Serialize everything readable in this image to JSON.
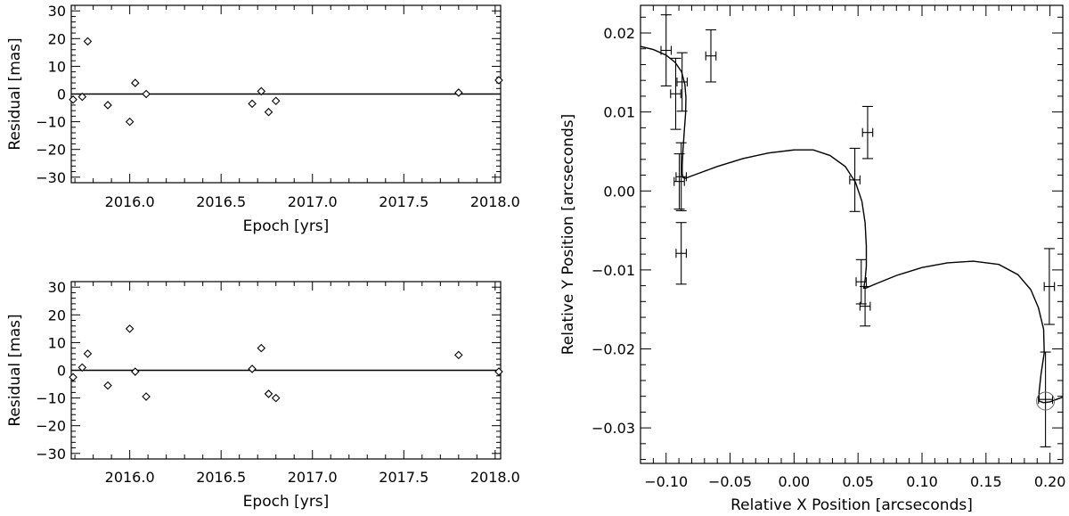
{
  "chart_data": [
    {
      "type": "scatter",
      "xlabel": "Epoch [yrs]",
      "ylabel": "Residual  [mas]",
      "xlim": [
        2015.68,
        2018.03
      ],
      "ylim": [
        -32,
        32
      ],
      "x_ticks": [
        "2016.0",
        "2016.5",
        "2017.0",
        "2017.5",
        "2018.0"
      ],
      "y_ticks": [
        "30",
        "20",
        "10",
        "0",
        "−10",
        "−20",
        "−30"
      ],
      "zero_line": true,
      "series": [
        {
          "marker": "diamond",
          "points": [
            [
              2015.69,
              -2
            ],
            [
              2015.74,
              -1
            ],
            [
              2015.77,
              19
            ],
            [
              2015.88,
              -4
            ],
            [
              2016.0,
              -10
            ],
            [
              2016.03,
              4
            ],
            [
              2016.09,
              0
            ],
            [
              2016.67,
              -3.5
            ],
            [
              2016.72,
              1
            ],
            [
              2016.76,
              -6.5
            ],
            [
              2016.8,
              -2.5
            ],
            [
              2017.8,
              0.5
            ],
            [
              2018.02,
              5
            ]
          ]
        }
      ]
    },
    {
      "type": "scatter",
      "xlabel": "Epoch [yrs]",
      "ylabel": "Residual  [mas]",
      "xlim": [
        2015.68,
        2018.03
      ],
      "ylim": [
        -32,
        32
      ],
      "x_ticks": [
        "2016.0",
        "2016.5",
        "2017.0",
        "2017.5",
        "2018.0"
      ],
      "y_ticks": [
        "30",
        "20",
        "10",
        "0",
        "−10",
        "−20",
        "−30"
      ],
      "zero_line": true,
      "series": [
        {
          "marker": "diamond",
          "points": [
            [
              2015.69,
              -2.5
            ],
            [
              2015.74,
              1
            ],
            [
              2015.77,
              6
            ],
            [
              2015.88,
              -5.5
            ],
            [
              2016.0,
              15
            ],
            [
              2016.03,
              -0.5
            ],
            [
              2016.09,
              -9.5
            ],
            [
              2016.67,
              0.5
            ],
            [
              2016.72,
              8
            ],
            [
              2016.76,
              -8.5
            ],
            [
              2016.8,
              -10
            ],
            [
              2017.8,
              5.5
            ],
            [
              2018.02,
              -0.5
            ]
          ]
        }
      ]
    },
    {
      "type": "line",
      "xlabel": "Relative X Position [arcseconds]",
      "ylabel": "Relative Y Position [arcseconds]",
      "xlim": [
        -0.12,
        0.21
      ],
      "ylim": [
        -0.0345,
        0.0235
      ],
      "x_ticks": [
        "−0.10",
        "−0.05",
        "0.00",
        "0.05",
        "0.10",
        "0.15",
        "0.20"
      ],
      "y_ticks": [
        "0.02",
        "0.01",
        "0.00",
        "−0.01",
        "−0.02",
        "−0.03"
      ],
      "track": [
        [
          -0.12,
          0.0183
        ],
        [
          -0.11,
          0.0179
        ],
        [
          -0.1,
          0.0172
        ],
        [
          -0.093,
          0.0163
        ],
        [
          -0.088,
          0.0151
        ],
        [
          -0.0853,
          0.0135
        ],
        [
          -0.0845,
          0.0118
        ],
        [
          -0.0848,
          0.0098
        ],
        [
          -0.0858,
          0.0075
        ],
        [
          -0.0868,
          0.0052
        ],
        [
          -0.0874,
          0.0032
        ],
        [
          -0.0874,
          0.0022
        ],
        [
          -0.0868,
          0.0017
        ],
        [
          -0.085,
          0.0016
        ],
        [
          -0.08,
          0.0019
        ],
        [
          -0.06,
          0.0031
        ],
        [
          -0.04,
          0.0041
        ],
        [
          -0.02,
          0.0048
        ],
        [
          0.0,
          0.0052
        ],
        [
          0.015,
          0.0052
        ],
        [
          0.028,
          0.0045
        ],
        [
          0.04,
          0.0031
        ],
        [
          0.048,
          0.0011
        ],
        [
          0.053,
          -0.0013
        ],
        [
          0.0555,
          -0.004
        ],
        [
          0.0565,
          -0.007
        ],
        [
          0.0565,
          -0.0095
        ],
        [
          0.0555,
          -0.0113
        ],
        [
          0.0545,
          -0.0123
        ],
        [
          0.056,
          -0.0123
        ],
        [
          0.065,
          -0.0117
        ],
        [
          0.08,
          -0.0107
        ],
        [
          0.1,
          -0.0097
        ],
        [
          0.12,
          -0.0091
        ],
        [
          0.14,
          -0.0089
        ],
        [
          0.16,
          -0.0093
        ],
        [
          0.175,
          -0.0106
        ],
        [
          0.185,
          -0.0125
        ],
        [
          0.191,
          -0.0148
        ],
        [
          0.195,
          -0.0175
        ],
        [
          0.1955,
          -0.0205
        ],
        [
          0.193,
          -0.0232
        ],
        [
          0.1915,
          -0.0255
        ],
        [
          0.1915,
          -0.0266
        ],
        [
          0.195,
          -0.0268
        ],
        [
          0.2,
          -0.0267
        ],
        [
          0.205,
          -0.0264
        ],
        [
          0.21,
          -0.0261
        ]
      ],
      "measurements": [
        {
          "x": -0.1,
          "y": 0.0178,
          "xerr": 0.004,
          "yerr": 0.0045
        },
        {
          "x": -0.0925,
          "y": 0.0123,
          "xerr": 0.004,
          "yerr": 0.0045
        },
        {
          "x": -0.0875,
          "y": 0.0138,
          "xerr": 0.004,
          "yerr": 0.0037
        },
        {
          "x": -0.065,
          "y": 0.0171,
          "xerr": 0.004,
          "yerr": 0.0033
        },
        {
          "x": -0.0897,
          "y": 0.0012,
          "xerr": 0.004,
          "yerr": 0.0035
        },
        {
          "x": -0.0882,
          "y": 0.0018,
          "xerr": 0.004,
          "yerr": 0.0043
        },
        {
          "x": -0.0882,
          "y": -0.0079,
          "xerr": 0.004,
          "yerr": 0.0039
        },
        {
          "x": 0.0475,
          "y": 0.0014,
          "xerr": 0.004,
          "yerr": 0.004
        },
        {
          "x": 0.0575,
          "y": 0.0074,
          "xerr": 0.004,
          "yerr": 0.0033
        },
        {
          "x": 0.0525,
          "y": -0.0115,
          "xerr": 0.004,
          "yerr": 0.0028
        },
        {
          "x": 0.0555,
          "y": -0.0146,
          "xerr": 0.004,
          "yerr": 0.0025
        },
        {
          "x": 0.1995,
          "y": -0.0121,
          "xerr": 0.004,
          "yerr": 0.0048
        },
        {
          "x": 0.1965,
          "y": -0.0264,
          "xerr": 0.0055,
          "yerr": 0.006
        }
      ],
      "circle_marker": {
        "x": 0.1965,
        "y": -0.0266
      }
    }
  ]
}
